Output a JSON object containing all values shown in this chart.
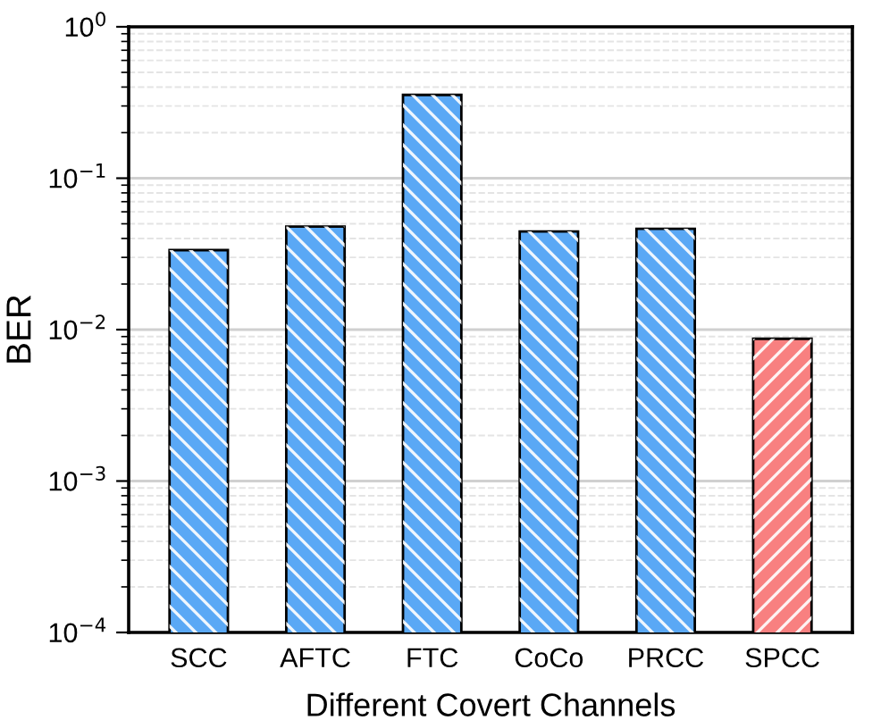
{
  "chart_data": {
    "type": "bar",
    "xlabel": "Different Covert Channels",
    "ylabel": "BER",
    "categories": [
      "SCC",
      "AFTC",
      "FTC",
      "CoCo",
      "PRCC",
      "SPCC"
    ],
    "values": [
      0.0335,
      0.048,
      0.355,
      0.0445,
      0.0464,
      0.0087
    ],
    "colors": [
      "#5aa8f5",
      "#5aa8f5",
      "#5aa8f5",
      "#5aa8f5",
      "#5aa8f5",
      "#f88080"
    ],
    "log": "y",
    "ylim": [
      0.0001,
      1
    ],
    "yticks": [
      {
        "value": 0.0001,
        "label": "10$^{−4}$"
      },
      {
        "value": 0.001,
        "label": "10$^{−3}$"
      },
      {
        "value": 0.01,
        "label": "10$^{−2}$"
      },
      {
        "value": 0.1,
        "label": "10$^{−1}$"
      },
      {
        "value": 1,
        "label": "10$^{0}$"
      }
    ],
    "grid": "y"
  }
}
